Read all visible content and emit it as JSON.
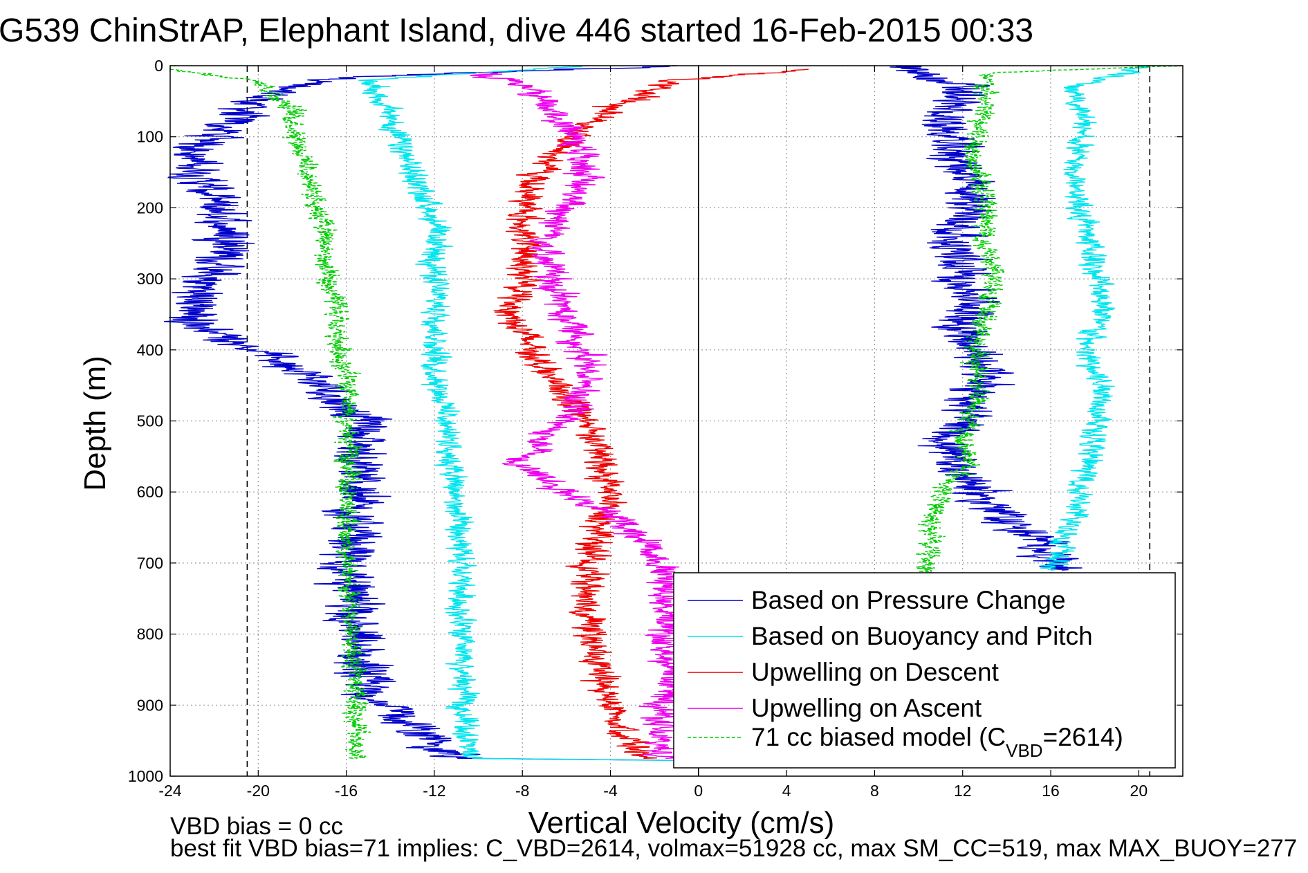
{
  "chart_data": {
    "type": "line",
    "title": "G539 ChinStrAP, Elephant Island, dive 446 started 16-Feb-2015 00:33",
    "xlabel": "Vertical Velocity (cm/s)",
    "ylabel": "Depth (m)",
    "xlim": [
      -24,
      22
    ],
    "ylim": [
      1000,
      0
    ],
    "y_inverted": true,
    "grid": true,
    "x_ticks": [
      -24,
      -20,
      -16,
      -12,
      -8,
      -4,
      0,
      4,
      8,
      12,
      16,
      20
    ],
    "x_tick_labels": [
      "-24",
      "-20",
      "-16",
      "-12",
      "-8",
      "-4",
      "0",
      "4",
      "8",
      "12",
      "16",
      "20"
    ],
    "y_ticks": [
      0,
      100,
      200,
      300,
      400,
      500,
      600,
      700,
      800,
      900,
      1000
    ],
    "y_tick_labels": [
      "0",
      "100",
      "200",
      "300",
      "400",
      "500",
      "600",
      "700",
      "800",
      "900",
      "1000"
    ],
    "reference_lines": [
      {
        "x": 0,
        "style": "solid",
        "color": "#000000"
      },
      {
        "x": -20.5,
        "style": "dashed",
        "color": "#000000"
      },
      {
        "x": 20.5,
        "style": "dashed",
        "color": "#000000"
      }
    ],
    "legend_position": "bottom-right",
    "legend": [
      {
        "label": "Based on Pressure Change",
        "color": "#0000cc",
        "style": "solid"
      },
      {
        "label": "Based on Buoyancy and Pitch",
        "color": "#00e5ee",
        "style": "solid"
      },
      {
        "label": "Upwelling on Descent",
        "color": "#ee0000",
        "style": "solid"
      },
      {
        "label": "Upwelling on Ascent",
        "color": "#ee00ee",
        "style": "solid"
      },
      {
        "label_prefix": "71 cc biased model (C",
        "label_sub": "VBD",
        "label_suffix": "=2614)",
        "color": "#00cc00",
        "style": "dashed"
      }
    ],
    "series": [
      {
        "color": "#0000cc",
        "style": "solid",
        "noise": 0.9,
        "segments": [
          [
            [
              -1,
              0
            ],
            [
              -15,
              15
            ],
            [
              -19,
              30
            ],
            [
              -21,
              70
            ],
            [
              -23,
              130
            ],
            [
              -22,
              200
            ],
            [
              -21,
              250
            ],
            [
              -22.5,
              300
            ],
            [
              -23,
              360
            ],
            [
              -20,
              400
            ],
            [
              -18,
              430
            ],
            [
              -16.5,
              470
            ],
            [
              -15,
              500
            ],
            [
              -15.5,
              550
            ],
            [
              -15.5,
              620
            ],
            [
              -16,
              700
            ],
            [
              -15.8,
              760
            ],
            [
              -15.6,
              820
            ],
            [
              -15,
              880
            ],
            [
              -13,
              930
            ],
            [
              -11,
              975
            ],
            [
              -1,
              978
            ]
          ],
          [
            [
              9,
              0
            ],
            [
              12,
              30
            ],
            [
              11,
              80
            ],
            [
              12,
              150
            ],
            [
              12.5,
              200
            ],
            [
              11.5,
              250
            ],
            [
              12,
              300
            ],
            [
              12.5,
              340
            ],
            [
              12,
              370
            ],
            [
              13,
              430
            ],
            [
              12.2,
              490
            ],
            [
              11,
              540
            ],
            [
              12,
              570
            ],
            [
              13,
              610
            ],
            [
              14,
              640
            ],
            [
              15.5,
              670
            ],
            [
              16.5,
              710
            ]
          ]
        ]
      },
      {
        "color": "#00e5ee",
        "style": "solid",
        "noise": 0.45,
        "segments": [
          [
            [
              -5,
              0
            ],
            [
              -15,
              20
            ],
            [
              -14,
              70
            ],
            [
              -13.5,
              120
            ],
            [
              -12.5,
              180
            ],
            [
              -12,
              220
            ],
            [
              -12,
              300
            ],
            [
              -11.8,
              360
            ],
            [
              -12,
              420
            ],
            [
              -11.5,
              480
            ],
            [
              -11.2,
              560
            ],
            [
              -11,
              640
            ],
            [
              -10.8,
              720
            ],
            [
              -10.8,
              820
            ],
            [
              -10.6,
              920
            ],
            [
              -10.3,
              975
            ],
            [
              -1,
              978
            ]
          ],
          [
            [
              20.5,
              0
            ],
            [
              17,
              30
            ],
            [
              17.5,
              80
            ],
            [
              17,
              150
            ],
            [
              17.5,
              220
            ],
            [
              18,
              280
            ],
            [
              18.5,
              340
            ],
            [
              17.5,
              400
            ],
            [
              18.5,
              460
            ],
            [
              18,
              520
            ],
            [
              17.5,
              580
            ],
            [
              17,
              640
            ],
            [
              16.5,
              680
            ],
            [
              16,
              710
            ]
          ]
        ]
      },
      {
        "color": "#ee0000",
        "style": "solid",
        "noise": 0.55,
        "segments": [
          [
            [
              5,
              5
            ],
            [
              -1,
              20
            ],
            [
              -4,
              60
            ],
            [
              -6,
              110
            ],
            [
              -7.5,
              160
            ],
            [
              -8,
              220
            ],
            [
              -7.8,
              280
            ],
            [
              -8.5,
              350
            ],
            [
              -7.5,
              400
            ],
            [
              -6.5,
              450
            ],
            [
              -5,
              500
            ],
            [
              -4.5,
              550
            ],
            [
              -4,
              600
            ],
            [
              -4.5,
              650
            ],
            [
              -5,
              700
            ],
            [
              -5,
              780
            ],
            [
              -4.5,
              860
            ],
            [
              -3.5,
              930
            ],
            [
              -2.5,
              975
            ]
          ]
        ]
      },
      {
        "color": "#ee00ee",
        "style": "solid",
        "noise": 0.6,
        "segments": [
          [
            [
              -10,
              10
            ],
            [
              -8,
              30
            ],
            [
              -6,
              80
            ],
            [
              -5,
              140
            ],
            [
              -6,
              200
            ],
            [
              -7,
              260
            ],
            [
              -6.5,
              320
            ],
            [
              -5.5,
              380
            ],
            [
              -5,
              430
            ],
            [
              -5.5,
              480
            ],
            [
              -7,
              520
            ],
            [
              -8,
              560
            ],
            [
              -6,
              600
            ],
            [
              -3.5,
              640
            ],
            [
              -2,
              680
            ],
            [
              -1.5,
              720
            ],
            [
              -1.5,
              800
            ],
            [
              -1.3,
              880
            ],
            [
              -2,
              940
            ],
            [
              -1.5,
              975
            ]
          ]
        ]
      },
      {
        "color": "#00cc00",
        "style": "dashed",
        "noise": 0.4,
        "segments": [
          [
            [
              -24,
              5
            ],
            [
              -20,
              20
            ],
            [
              -18.5,
              60
            ],
            [
              -18,
              120
            ],
            [
              -17.5,
              180
            ],
            [
              -17,
              220
            ],
            [
              -17,
              300
            ],
            [
              -16.5,
              330
            ],
            [
              -16.5,
              380
            ],
            [
              -16,
              430
            ],
            [
              -16,
              500
            ],
            [
              -15.8,
              560
            ],
            [
              -16,
              640
            ],
            [
              -16,
              700
            ],
            [
              -15.8,
              780
            ],
            [
              -15.6,
              860
            ],
            [
              -15.5,
              940
            ],
            [
              -15.5,
              975
            ]
          ],
          [
            [
              22,
              0
            ],
            [
              13,
              10
            ],
            [
              13,
              60
            ],
            [
              12.5,
              120
            ],
            [
              13,
              180
            ],
            [
              13,
              250
            ],
            [
              13.5,
              310
            ],
            [
              13,
              350
            ],
            [
              12.5,
              400
            ],
            [
              12.8,
              460
            ],
            [
              12,
              520
            ],
            [
              12.3,
              560
            ],
            [
              11,
              600
            ],
            [
              10.5,
              660
            ],
            [
              10.5,
              720
            ]
          ]
        ]
      }
    ]
  },
  "notes": {
    "line1": "VBD bias = 0 cc",
    "line2": "best fit VBD bias=71 implies: C_VBD=2614, volmax=51928 cc, max SM_CC=519, max MAX_BUOY=277"
  }
}
